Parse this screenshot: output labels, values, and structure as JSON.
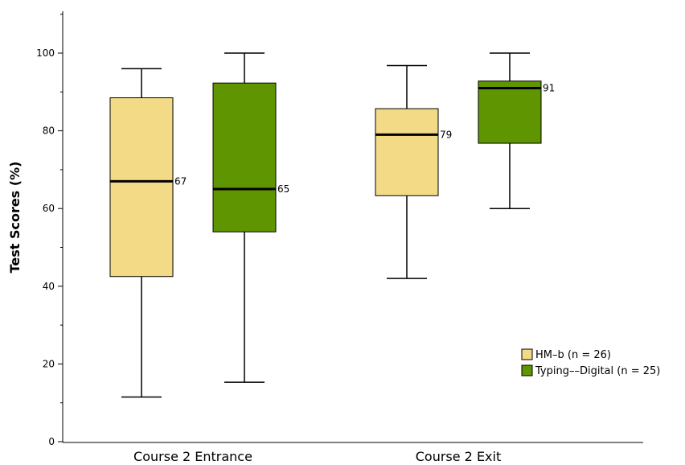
{
  "chart_data": {
    "type": "boxplot",
    "ylabel": "Test Scores (%)",
    "xlabel": "",
    "ylim": [
      0,
      112
    ],
    "yticks": [
      0,
      20,
      40,
      60,
      80,
      100
    ],
    "categories": [
      "Course 2 Entrance",
      "Course 2 Exit"
    ],
    "legend_position": "right",
    "grid": false,
    "series": [
      {
        "name": "HM–b (n = 26)",
        "color": "#f2da86",
        "boxes": [
          {
            "whisker_low": 11.5,
            "q1": 42.5,
            "median": 67,
            "q3": 88.5,
            "whisker_high": 96,
            "median_label": "67"
          },
          {
            "whisker_low": 42,
            "q1": 63.3,
            "median": 79,
            "q3": 85.7,
            "whisker_high": 96.8,
            "median_label": "79"
          }
        ]
      },
      {
        "name": "Typing––Digital (n = 25)",
        "color": "#5f9500",
        "boxes": [
          {
            "whisker_low": 15.3,
            "q1": 54,
            "median": 65,
            "q3": 92.3,
            "whisker_high": 100,
            "median_label": "65"
          },
          {
            "whisker_low": 60,
            "q1": 76.8,
            "median": 91,
            "q3": 92.8,
            "whisker_high": 100,
            "median_label": "91"
          }
        ]
      }
    ]
  }
}
